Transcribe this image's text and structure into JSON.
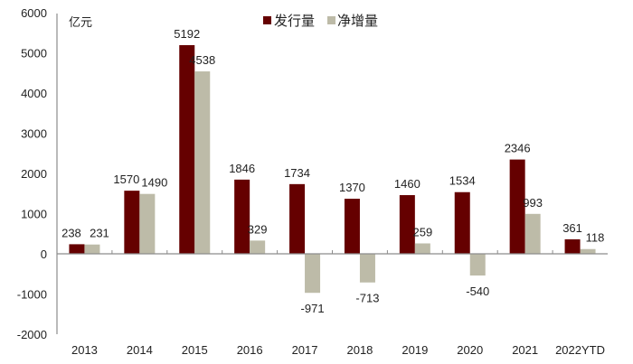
{
  "chart_data": {
    "type": "bar",
    "title": "",
    "unit_label": "亿元",
    "xlabel": "",
    "ylabel": "亿元",
    "ylim": [
      -2000,
      6000
    ],
    "yticks": [
      -2000,
      -1000,
      0,
      1000,
      2000,
      3000,
      4000,
      5000,
      6000
    ],
    "grid": false,
    "legend_position": "top-center",
    "categories": [
      "2013",
      "2014",
      "2015",
      "2016",
      "2017",
      "2018",
      "2019",
      "2020",
      "2021",
      "2022YTD"
    ],
    "series": [
      {
        "name": "发行量",
        "color": "#650000",
        "values": [
          238,
          1570,
          5192,
          1846,
          1734,
          1370,
          1460,
          1534,
          2346,
          361
        ]
      },
      {
        "name": "净增量",
        "color": "#BDBBA8",
        "values": [
          231,
          1490,
          4538,
          329,
          -971,
          -713,
          259,
          -540,
          993,
          118
        ]
      }
    ]
  },
  "legend": {
    "items": [
      {
        "label": "发行量",
        "color": "#650000"
      },
      {
        "label": "净增量",
        "color": "#BDBBA8"
      }
    ]
  },
  "axis": {
    "unit": "亿元",
    "line_color": "#8c8c8c"
  }
}
